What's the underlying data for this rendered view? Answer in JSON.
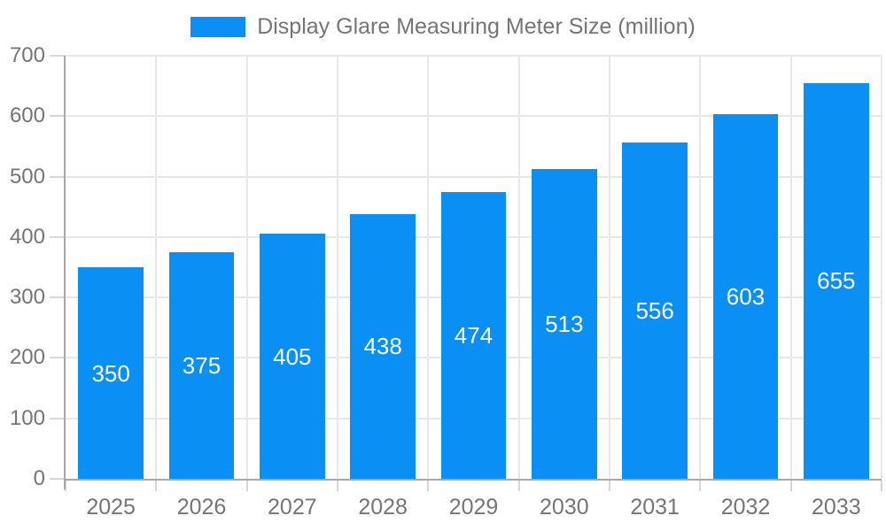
{
  "legend": {
    "label": "Display Glare Measuring Meter Size (million)"
  },
  "chart_data": {
    "type": "bar",
    "title": "Display Glare Measuring Meter Size (million)",
    "categories": [
      "2025",
      "2026",
      "2027",
      "2028",
      "2029",
      "2030",
      "2031",
      "2032",
      "2033"
    ],
    "values": [
      350,
      375,
      405,
      438,
      474,
      513,
      556,
      603,
      655
    ],
    "xlabel": "",
    "ylabel": "",
    "ylim": [
      0,
      700
    ],
    "yticks": [
      0,
      100,
      200,
      300,
      400,
      500,
      600,
      700
    ],
    "grid": true,
    "legend_position": "top",
    "bar_value_labels": "inside-center",
    "colors": {
      "bar": "#0a90f5",
      "axis_text": "#757575",
      "grid_line": "#e8e8e8",
      "axis_line": "#a8a8a8",
      "tick_line": "#d6d6d6",
      "bar_label": "#ffffff",
      "background": "#ffffff"
    }
  }
}
